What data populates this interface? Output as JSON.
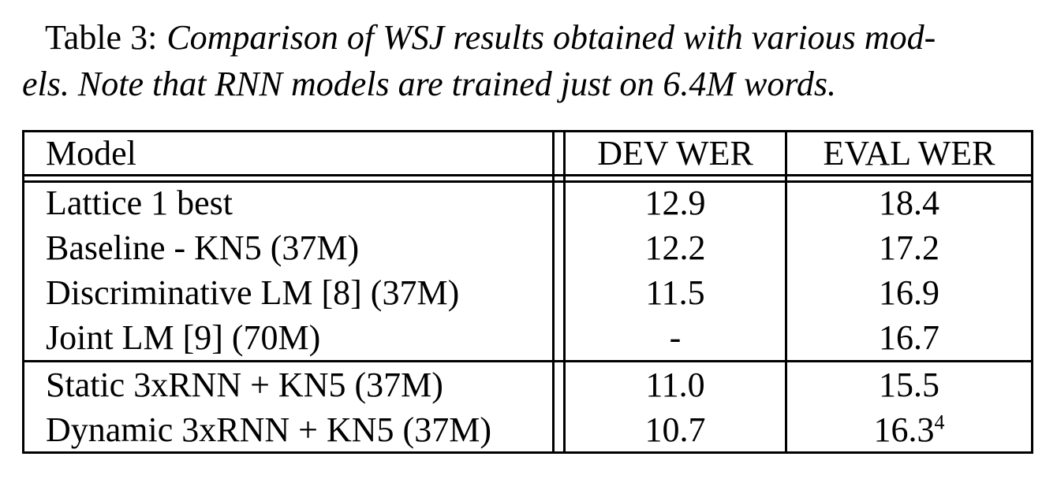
{
  "caption": {
    "label": "Table 3:",
    "line1": "Comparison of WSJ results obtained with various mod-",
    "line2": "els. Note that RNN models are trained just on 6.4M words."
  },
  "table": {
    "headers": {
      "model": "Model",
      "dev": "DEV WER",
      "eval": "EVAL WER"
    },
    "groups": [
      {
        "rows": [
          {
            "model": "Lattice 1 best",
            "dev": "12.9",
            "eval": "18.4"
          },
          {
            "model": "Baseline - KN5 (37M)",
            "dev": "12.2",
            "eval": "17.2"
          },
          {
            "model": "Discriminative LM [8] (37M)",
            "dev": "11.5",
            "eval": "16.9"
          },
          {
            "model": "Joint LM [9] (70M)",
            "dev": "-",
            "eval": "16.7"
          }
        ]
      },
      {
        "rows": [
          {
            "model": "Static 3xRNN + KN5 (37M)",
            "dev": "11.0",
            "eval": "15.5"
          },
          {
            "model": "Dynamic 3xRNN + KN5 (37M)",
            "dev": "10.7",
            "eval": "16.3",
            "eval_superscript": "4"
          }
        ]
      }
    ]
  },
  "chart_data": {
    "type": "table",
    "title": "Table 3: Comparison of WSJ results obtained with various models. Note that RNN models are trained just on 6.4M words.",
    "columns": [
      "Model",
      "DEV WER",
      "EVAL WER"
    ],
    "rows": [
      [
        "Lattice 1 best",
        12.9,
        18.4
      ],
      [
        "Baseline - KN5 (37M)",
        12.2,
        17.2
      ],
      [
        "Discriminative LM [8] (37M)",
        11.5,
        16.9
      ],
      [
        "Joint LM [9] (70M)",
        null,
        16.7
      ],
      [
        "Static 3xRNN + KN5 (37M)",
        11.0,
        15.5
      ],
      [
        "Dynamic 3xRNN + KN5 (37M)",
        10.7,
        16.3
      ]
    ],
    "notes": "Dynamic 3xRNN EVAL WER 16.3 carries footnote marker 4; Joint LM DEV WER shown as dash"
  },
  "colors": {
    "text": "#000000",
    "background": "#ffffff",
    "rule": "#000000"
  }
}
